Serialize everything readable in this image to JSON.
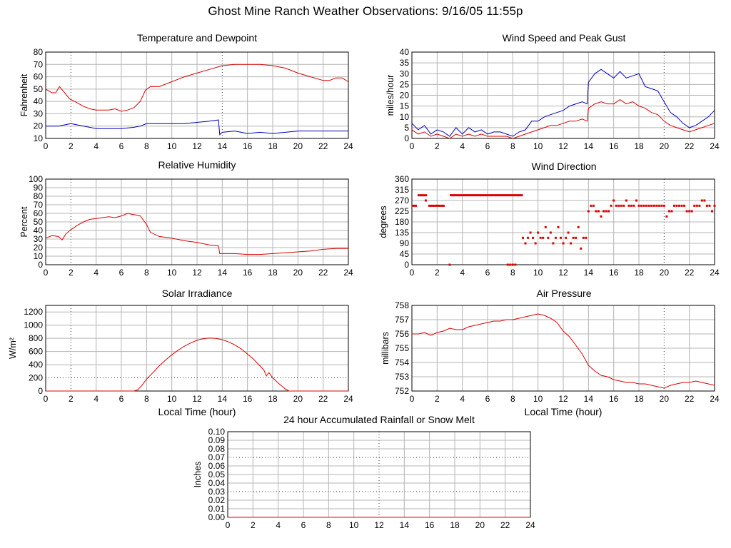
{
  "page": {
    "title": "Ghost Mine Ranch Weather Observations: 9/16/05 11:55p"
  },
  "colors": {
    "red": "#dd0000",
    "blue": "#0000bb",
    "grid": "#b4b4b4"
  },
  "chart_data": [
    {
      "id": "temp",
      "type": "line",
      "title": "Temperature and Dewpoint",
      "xlabel": "",
      "ylabel": "Fahrenheit",
      "xlim": [
        0,
        24
      ],
      "ylim": [
        10,
        80
      ],
      "yticks": [
        10,
        20,
        30,
        40,
        50,
        60,
        70,
        80
      ],
      "xticks": [
        0,
        2,
        4,
        6,
        8,
        10,
        12,
        14,
        16,
        18,
        20,
        22,
        24
      ],
      "grid": true,
      "dotted_x": [
        2,
        14
      ],
      "dotted_y": [],
      "series": [
        {
          "color": "red",
          "x": [
            0,
            0.5,
            0.8,
            1.1,
            1.5,
            1.9,
            2.3,
            3,
            3.5,
            4,
            4.5,
            5,
            5.5,
            6,
            6.5,
            7,
            7.5,
            7.9,
            8.3,
            9,
            10,
            11,
            12,
            13,
            14,
            15,
            16,
            17,
            18,
            19,
            20,
            21,
            22,
            22.5,
            23,
            23.5,
            24
          ],
          "y": [
            50,
            47,
            47,
            52,
            47,
            42,
            40,
            36,
            34,
            33,
            33,
            33,
            34,
            32,
            33,
            35,
            40,
            49,
            52,
            52,
            56,
            60,
            63,
            66,
            69,
            70,
            70,
            70,
            69,
            67,
            63,
            60,
            57,
            57,
            59,
            59,
            56
          ]
        },
        {
          "color": "blue",
          "x": [
            0,
            1,
            1.5,
            2,
            3,
            4,
            5,
            6,
            7,
            7.5,
            8,
            9,
            10,
            11,
            12,
            13,
            13.7,
            13.8,
            14,
            15,
            16,
            17,
            18,
            19,
            20,
            21,
            22,
            23,
            24
          ],
          "y": [
            20,
            20,
            21,
            22,
            20,
            18,
            18,
            18,
            19,
            20,
            22,
            22,
            22,
            22,
            23,
            24,
            25,
            13,
            15,
            16,
            14,
            15,
            14,
            15,
            16,
            16,
            16,
            16,
            16
          ]
        }
      ]
    },
    {
      "id": "wind",
      "type": "line",
      "title": "Wind Speed and Peak Gust",
      "xlabel": "",
      "ylabel": "miles/hour",
      "xlim": [
        0,
        24
      ],
      "ylim": [
        0,
        40
      ],
      "yticks": [
        0,
        5,
        10,
        15,
        20,
        25,
        30,
        35,
        40
      ],
      "xticks": [
        0,
        2,
        4,
        6,
        8,
        10,
        12,
        14,
        16,
        18,
        20,
        22,
        24
      ],
      "grid": true,
      "dotted_x": [
        20
      ],
      "dotted_y": [],
      "series": [
        {
          "color": "blue",
          "x": [
            0,
            0.5,
            1,
            1.5,
            2,
            2.5,
            3,
            3.5,
            4,
            4.5,
            5,
            5.5,
            6,
            6.5,
            7,
            7.5,
            8,
            8.5,
            9,
            9.5,
            10,
            10.5,
            11,
            11.5,
            12,
            12.5,
            13,
            13.5,
            13.9,
            14,
            14.5,
            15,
            15.5,
            16,
            16.5,
            17,
            17.5,
            18,
            18.5,
            19,
            19.5,
            20,
            20.5,
            21,
            21.5,
            22,
            22.5,
            23,
            23.5,
            24
          ],
          "y": [
            7,
            4,
            6,
            2,
            4,
            3,
            1,
            5,
            2,
            5,
            3,
            4,
            2,
            3,
            3,
            2,
            1,
            3,
            4,
            8,
            8,
            10,
            11,
            12,
            13,
            15,
            16,
            17,
            16,
            26,
            30,
            32,
            30,
            28,
            31,
            28,
            29,
            30,
            24,
            23,
            22,
            17,
            12,
            10,
            7,
            5,
            6,
            8,
            10,
            13
          ]
        },
        {
          "color": "red",
          "x": [
            0,
            0.5,
            1,
            1.5,
            2,
            2.5,
            3,
            3.5,
            4,
            4.5,
            5,
            5.5,
            6,
            6.5,
            7,
            7.5,
            8,
            8.5,
            9,
            9.5,
            10,
            10.5,
            11,
            11.5,
            12,
            12.5,
            13,
            13.5,
            13.9,
            14,
            14.5,
            15,
            15.5,
            16,
            16.5,
            17,
            17.5,
            18,
            18.5,
            19,
            19.5,
            20,
            20.5,
            21,
            21.5,
            22,
            22.5,
            23,
            23.5,
            24
          ],
          "y": [
            4,
            2,
            3,
            1,
            2,
            1,
            0,
            2,
            1,
            2,
            1,
            2,
            1,
            1,
            1,
            1,
            0,
            1,
            2,
            3,
            4,
            5,
            6,
            6,
            7,
            8,
            8,
            9,
            8,
            14,
            16,
            17,
            16,
            16,
            18,
            16,
            17,
            15,
            14,
            12,
            11,
            8,
            6,
            5,
            4,
            3,
            4,
            5,
            6,
            7
          ]
        }
      ]
    },
    {
      "id": "rh",
      "type": "line",
      "title": "Relative Humidity",
      "xlabel": "",
      "ylabel": "Percent",
      "xlim": [
        0,
        24
      ],
      "ylim": [
        0,
        100
      ],
      "yticks": [
        0,
        10,
        20,
        30,
        40,
        50,
        60,
        70,
        80,
        90,
        100
      ],
      "xticks": [
        0,
        2,
        4,
        6,
        8,
        10,
        12,
        14,
        16,
        18,
        20,
        22,
        24
      ],
      "grid": true,
      "dotted_x": [
        2
      ],
      "dotted_y": [],
      "series": [
        {
          "color": "red",
          "x": [
            0,
            0.5,
            1,
            1.3,
            1.6,
            2,
            2.5,
            3,
            3.5,
            4,
            4.5,
            5,
            5.5,
            6,
            6.5,
            6.8,
            7.2,
            7.5,
            8,
            8.3,
            9,
            10,
            11,
            12,
            13,
            13.7,
            13.8,
            14,
            15,
            16,
            17,
            18,
            19,
            20,
            21,
            22,
            23,
            24
          ],
          "y": [
            31,
            34,
            33,
            29,
            36,
            41,
            46,
            50,
            53,
            54,
            55,
            56,
            55,
            57,
            60,
            59,
            58,
            57,
            47,
            38,
            33,
            31,
            28,
            26,
            23,
            22,
            13,
            13,
            13,
            12,
            12,
            13,
            14,
            15,
            16,
            18,
            19,
            19
          ]
        }
      ]
    },
    {
      "id": "dir",
      "type": "scatter",
      "title": "Wind Direction",
      "xlabel": "",
      "ylabel": "degrees",
      "xlim": [
        0,
        24
      ],
      "ylim": [
        0,
        360
      ],
      "yticks": [
        0,
        45,
        90,
        135,
        180,
        225,
        270,
        315,
        360
      ],
      "xticks": [
        0,
        2,
        4,
        6,
        8,
        10,
        12,
        14,
        16,
        18,
        20,
        22,
        24
      ],
      "grid": true,
      "dotted_x": [
        20
      ],
      "dotted_y": [],
      "series": [
        {
          "color": "red",
          "segments": [
            [
              0,
              0.4,
              248
            ],
            [
              0.45,
              1.2,
              292
            ],
            [
              1.3,
              2.6,
              248
            ],
            [
              3.0,
              8.8,
              292
            ]
          ],
          "x": [
            1.1,
            3.0,
            7.6,
            7.8,
            8.0,
            8.2,
            8.8,
            9.0,
            9.2,
            9.4,
            9.6,
            9.8,
            10.0,
            10.2,
            10.4,
            10.6,
            10.8,
            11.0,
            11.2,
            11.4,
            11.6,
            11.8,
            12.0,
            12.2,
            12.4,
            12.6,
            12.8,
            13.0,
            13.2,
            13.4,
            13.6,
            13.8,
            14.0,
            14.2,
            14.4,
            14.6,
            14.8,
            15.0,
            15.2,
            15.4,
            15.6,
            15.8,
            16.0,
            16.2,
            16.4,
            16.6,
            16.8,
            17.0,
            17.2,
            17.4,
            17.6,
            17.8,
            18.0,
            18.2,
            18.4,
            18.6,
            18.8,
            19.0,
            19.2,
            19.4,
            19.6,
            19.8,
            20.0,
            20.2,
            20.4,
            20.6,
            20.8,
            21.0,
            21.2,
            21.4,
            21.6,
            21.8,
            22.0,
            22.2,
            22.4,
            22.6,
            22.8,
            23.0,
            23.2,
            23.4,
            23.6,
            23.8,
            24.0
          ],
          "y": [
            270,
            0,
            0,
            0,
            0,
            0,
            113,
            90,
            113,
            135,
            113,
            90,
            135,
            113,
            113,
            158,
            113,
            135,
            90,
            113,
            158,
            113,
            90,
            113,
            135,
            90,
            113,
            113,
            158,
            68,
            113,
            113,
            225,
            248,
            248,
            225,
            225,
            203,
            225,
            225,
            225,
            248,
            270,
            248,
            248,
            248,
            248,
            270,
            248,
            248,
            248,
            270,
            248,
            248,
            248,
            248,
            248,
            248,
            248,
            248,
            248,
            248,
            248,
            203,
            225,
            225,
            248,
            248,
            248,
            248,
            248,
            225,
            225,
            225,
            248,
            248,
            248,
            270,
            270,
            248,
            248,
            225,
            248
          ]
        }
      ]
    },
    {
      "id": "solar",
      "type": "line",
      "title": "Solar Irradiance",
      "xlabel": "Local Time (hour)",
      "ylabel": "W/m²",
      "xlim": [
        0,
        24
      ],
      "ylim": [
        0,
        1300
      ],
      "yticks": [
        0,
        200,
        400,
        600,
        800,
        1000,
        1200
      ],
      "xticks": [
        0,
        2,
        4,
        6,
        8,
        10,
        12,
        14,
        16,
        18,
        20,
        22,
        24
      ],
      "grid": true,
      "dotted_x": [
        2
      ],
      "dotted_y": [
        200
      ],
      "series": [
        {
          "color": "red",
          "x": [
            0,
            7,
            7.3,
            7.6,
            8,
            8.5,
            9,
            9.5,
            10,
            10.5,
            11,
            11.5,
            12,
            12.5,
            13,
            13.5,
            14,
            14.5,
            15,
            15.5,
            16,
            16.5,
            17,
            17.3,
            17.5,
            17.7,
            18,
            18.5,
            19,
            19.3,
            24
          ],
          "y": [
            0,
            0,
            20,
            80,
            180,
            280,
            380,
            470,
            550,
            620,
            680,
            730,
            770,
            795,
            805,
            800,
            780,
            745,
            700,
            640,
            560,
            480,
            380,
            320,
            230,
            280,
            200,
            110,
            30,
            0,
            0
          ]
        }
      ]
    },
    {
      "id": "pressure",
      "type": "line",
      "title": "Air Pressure",
      "xlabel": "Local Time (hour)",
      "ylabel": "millibars",
      "xlim": [
        0,
        24
      ],
      "ylim": [
        752,
        758
      ],
      "yticks": [
        752,
        753,
        754,
        755,
        756,
        757,
        758
      ],
      "xticks": [
        0,
        2,
        4,
        6,
        8,
        10,
        12,
        14,
        16,
        18,
        20,
        22,
        24
      ],
      "grid": true,
      "dotted_x": [
        20
      ],
      "dotted_y": [],
      "series": [
        {
          "color": "red",
          "x": [
            0,
            0.5,
            1,
            1.5,
            2,
            2.5,
            3,
            3.5,
            4,
            4.5,
            5,
            5.5,
            6,
            6.5,
            7,
            7.5,
            8,
            8.5,
            9,
            9.5,
            10,
            10.5,
            11,
            11.5,
            12,
            12.5,
            13,
            13.5,
            14,
            14.5,
            15,
            15.5,
            16,
            16.5,
            17,
            17.5,
            18,
            18.5,
            19,
            19.5,
            20,
            20.5,
            21,
            21.5,
            22,
            22.5,
            23,
            23.5,
            24
          ],
          "y": [
            756.0,
            756.0,
            756.1,
            755.9,
            756.1,
            756.2,
            756.4,
            756.3,
            756.3,
            756.5,
            756.6,
            756.7,
            756.8,
            756.9,
            756.9,
            757.0,
            757.0,
            757.1,
            757.2,
            757.3,
            757.4,
            757.3,
            757.1,
            756.8,
            756.2,
            755.8,
            755.2,
            754.6,
            753.8,
            753.4,
            753.1,
            753.0,
            752.8,
            752.7,
            752.6,
            752.6,
            752.5,
            752.5,
            752.4,
            752.3,
            752.2,
            752.4,
            752.5,
            752.6,
            752.6,
            752.7,
            752.6,
            752.5,
            752.4
          ]
        }
      ]
    },
    {
      "id": "rain",
      "type": "line",
      "title": "24 hour Accumulated Rainfall or Snow Melt",
      "xlabel": "",
      "ylabel": "Inches",
      "xlim": [
        0,
        24
      ],
      "ylim": [
        0,
        0.1
      ],
      "yticks": [
        "0.00",
        "0.01",
        "0.02",
        "0.03",
        "0.04",
        "0.05",
        "0.06",
        "0.07",
        "0.08",
        "0.09",
        "0.10"
      ],
      "xticks": [
        0,
        2,
        4,
        6,
        8,
        10,
        12,
        14,
        16,
        18,
        20,
        22,
        24
      ],
      "grid": true,
      "dotted_x": [
        12
      ],
      "dotted_y": [
        "0.03",
        "0.07"
      ],
      "series": [
        {
          "color": "red",
          "x": [
            0,
            24
          ],
          "y": [
            0,
            0
          ]
        }
      ]
    }
  ]
}
